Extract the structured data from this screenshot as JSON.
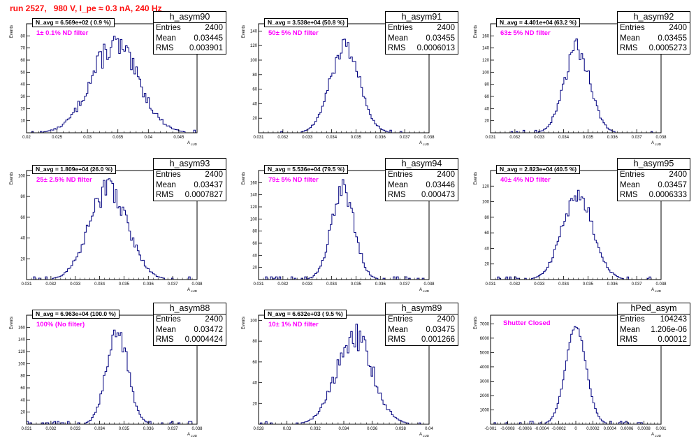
{
  "run_title": "run 2527,   980 V, I_pe ≈ 0.3 nA, 240 Hz",
  "colors": {
    "histogram": "#00007f",
    "title": "#ff1010",
    "filter_label": "#ff00ff",
    "axis": "#000000"
  },
  "stat_labels": {
    "entries": "Entries",
    "mean": "Mean",
    "rms": "RMS"
  },
  "chart_data": [
    {
      "type": "bar",
      "name": "h_asym90",
      "stats": {
        "entries": "2400",
        "mean": "0.03445",
        "rms": "0.003901"
      },
      "n_avg": "N_avg = 6.569e+02 ( 0.9 %)",
      "filter": "1± 0.1% ND filter",
      "ylabel": "Events",
      "xlabel": "A",
      "xlim": [
        0.02,
        0.048
      ],
      "ylim": [
        0,
        90
      ],
      "xticks": [
        "0.02",
        "0.025",
        "0.03",
        "0.035",
        "0.04",
        "0.045"
      ],
      "xtick_values": [
        0.02,
        0.025,
        0.03,
        0.035,
        0.04,
        0.045
      ],
      "yticks": [
        "10",
        "20",
        "30",
        "40",
        "50",
        "60",
        "70",
        "80"
      ],
      "ytick_values": [
        10,
        20,
        30,
        40,
        50,
        60,
        70,
        80
      ],
      "mean": 0.03445,
      "sigma": 0.0039,
      "peak": 72,
      "noise": 0.16
    },
    {
      "type": "bar",
      "name": "h_asym91",
      "stats": {
        "entries": "2400",
        "mean": "0.03455",
        "rms": "0.0006013"
      },
      "n_avg": "N_avg = 3.538e+04 (50.8 %)",
      "filter": "50± 5% ND filter",
      "ylabel": "Events",
      "xlabel": "A",
      "xlim": [
        0.031,
        0.038
      ],
      "ylim": [
        0,
        150
      ],
      "xticks": [
        "0.031",
        "0.032",
        "0.033",
        "0.034",
        "0.035",
        "0.036",
        "0.037",
        "0.038"
      ],
      "xtick_values": [
        0.031,
        0.032,
        0.033,
        0.034,
        0.035,
        0.036,
        0.037,
        0.038
      ],
      "yticks": [
        "20",
        "40",
        "60",
        "80",
        "100",
        "120",
        "140"
      ],
      "ytick_values": [
        20,
        40,
        60,
        80,
        100,
        120,
        140
      ],
      "mean": 0.03455,
      "sigma": 0.0006,
      "peak": 120,
      "noise": 0.12
    },
    {
      "type": "bar",
      "name": "h_asym92",
      "stats": {
        "entries": "2400",
        "mean": "0.03455",
        "rms": "0.0005273"
      },
      "n_avg": "N_avg = 4.401e+04 (63.2 %)",
      "filter": "63± 5% ND filter",
      "ylabel": "Events",
      "xlabel": "A",
      "xlim": [
        0.031,
        0.038
      ],
      "ylim": [
        0,
        180
      ],
      "xticks": [
        "0.031",
        "0.032",
        "0.033",
        "0.034",
        "0.035",
        "0.036",
        "0.037",
        "0.038"
      ],
      "xtick_values": [
        0.031,
        0.032,
        0.033,
        0.034,
        0.035,
        0.036,
        0.037,
        0.038
      ],
      "yticks": [
        "20",
        "40",
        "60",
        "80",
        "100",
        "120",
        "140",
        "160"
      ],
      "ytick_values": [
        20,
        40,
        60,
        80,
        100,
        120,
        140,
        160
      ],
      "mean": 0.03455,
      "sigma": 0.00053,
      "peak": 140,
      "noise": 0.12
    },
    {
      "type": "bar",
      "name": "h_asym93",
      "stats": {
        "entries": "2400",
        "mean": "0.03437",
        "rms": "0.0007827"
      },
      "n_avg": "N_avg = 1.809e+04 (26.0 %)",
      "filter": "25± 2.5% ND filter",
      "ylabel": "Events",
      "xlabel": "A",
      "xlim": [
        0.031,
        0.038
      ],
      "ylim": [
        0,
        105
      ],
      "xticks": [
        "0.031",
        "0.032",
        "0.033",
        "0.034",
        "0.035",
        "0.036",
        "0.037",
        "0.038"
      ],
      "xtick_values": [
        0.031,
        0.032,
        0.033,
        0.034,
        0.035,
        0.036,
        0.037,
        0.038
      ],
      "yticks": [
        "20",
        "40",
        "60",
        "80",
        "100"
      ],
      "ytick_values": [
        20,
        40,
        60,
        80,
        100
      ],
      "mean": 0.03437,
      "sigma": 0.00078,
      "peak": 88,
      "noise": 0.14
    },
    {
      "type": "bar",
      "name": "h_asym94",
      "stats": {
        "entries": "2400",
        "mean": "0.03446",
        "rms": "0.000473"
      },
      "n_avg": "N_avg = 5.536e+04 (79.5 %)",
      "filter": "79± 5% ND filter",
      "ylabel": "Events",
      "xlabel": "A",
      "xlim": [
        0.031,
        0.038
      ],
      "ylim": [
        0,
        180
      ],
      "xticks": [
        "0.031",
        "0.032",
        "0.033",
        "0.034",
        "0.035",
        "0.036",
        "0.037",
        "0.038"
      ],
      "xtick_values": [
        0.031,
        0.032,
        0.033,
        0.034,
        0.035,
        0.036,
        0.037,
        0.038
      ],
      "yticks": [
        "20",
        "40",
        "60",
        "80",
        "100",
        "120",
        "140",
        "160"
      ],
      "ytick_values": [
        20,
        40,
        60,
        80,
        100,
        120,
        140,
        160
      ],
      "mean": 0.03446,
      "sigma": 0.00047,
      "peak": 150,
      "noise": 0.12
    },
    {
      "type": "bar",
      "name": "h_asym95",
      "stats": {
        "entries": "2400",
        "mean": "0.03457",
        "rms": "0.0006333"
      },
      "n_avg": "N_avg = 2.823e+04 (40.5 %)",
      "filter": "40± 4% ND filter",
      "ylabel": "Events",
      "xlabel": "A",
      "xlim": [
        0.031,
        0.038
      ],
      "ylim": [
        0,
        140
      ],
      "xticks": [
        "0.031",
        "0.032",
        "0.033",
        "0.034",
        "0.035",
        "0.036",
        "0.037",
        "0.038"
      ],
      "xtick_values": [
        0.031,
        0.032,
        0.033,
        0.034,
        0.035,
        0.036,
        0.037,
        0.038
      ],
      "yticks": [
        "20",
        "40",
        "60",
        "80",
        "100",
        "120"
      ],
      "ytick_values": [
        20,
        40,
        60,
        80,
        100,
        120
      ],
      "mean": 0.03457,
      "sigma": 0.00063,
      "peak": 110,
      "noise": 0.12
    },
    {
      "type": "bar",
      "name": "h_asym88",
      "stats": {
        "entries": "2400",
        "mean": "0.03472",
        "rms": "0.0004424"
      },
      "n_avg": "N_avg = 6.963e+04 (100.0 %)",
      "filter": "100% (No filter)",
      "ylabel": "Events",
      "xlabel": "A",
      "xlim": [
        0.031,
        0.038
      ],
      "ylim": [
        0,
        180
      ],
      "xticks": [
        "0.031",
        "0.032",
        "0.033",
        "0.034",
        "0.035",
        "0.036",
        "0.037",
        "0.038"
      ],
      "xtick_values": [
        0.031,
        0.032,
        0.033,
        0.034,
        0.035,
        0.036,
        0.037,
        0.038
      ],
      "yticks": [
        "20",
        "40",
        "60",
        "80",
        "100",
        "120",
        "140",
        "160"
      ],
      "ytick_values": [
        20,
        40,
        60,
        80,
        100,
        120,
        140,
        160
      ],
      "mean": 0.03472,
      "sigma": 0.00044,
      "peak": 155,
      "noise": 0.12
    },
    {
      "type": "bar",
      "name": "h_asym89",
      "stats": {
        "entries": "2400",
        "mean": "0.03475",
        "rms": "0.001266"
      },
      "n_avg": "N_avg = 6.632e+03 ( 9.5 %)",
      "filter": "10± 1% ND filter",
      "ylabel": "Events",
      "xlabel": "A",
      "xlim": [
        0.028,
        0.04
      ],
      "ylim": [
        0,
        105
      ],
      "xticks": [
        "0.028",
        "0.03",
        "0.032",
        "0.034",
        "0.036",
        "0.038",
        "0.04"
      ],
      "xtick_values": [
        0.028,
        0.03,
        0.032,
        0.034,
        0.036,
        0.038,
        0.04
      ],
      "yticks": [
        "20",
        "40",
        "60",
        "80",
        "100"
      ],
      "ytick_values": [
        20,
        40,
        60,
        80,
        100
      ],
      "mean": 0.03475,
      "sigma": 0.00127,
      "peak": 85,
      "noise": 0.15
    },
    {
      "type": "bar",
      "name": "hPed_asym",
      "stats": {
        "entries": "104243",
        "mean": "1.206e-06",
        "rms": "0.00012"
      },
      "n_avg": "",
      "filter": "Shutter Closed",
      "ylabel": "Events",
      "xlabel": "A",
      "xlim": [
        -0.001,
        0.001
      ],
      "ylim": [
        0,
        7600
      ],
      "xticks": [
        "-0.001",
        "-0.0008",
        "-0.0006",
        "-0.0004",
        "-0.0002",
        "0",
        "0.0002",
        "0.0004",
        "0.0006",
        "0.0008",
        "0.001"
      ],
      "xtick_values": [
        -0.001,
        -0.0008,
        -0.0006,
        -0.0004,
        -0.0002,
        0,
        0.0002,
        0.0004,
        0.0006,
        0.0008,
        0.001
      ],
      "yticks": [
        "1000",
        "2000",
        "3000",
        "4000",
        "5000",
        "6000",
        "7000"
      ],
      "ytick_values": [
        1000,
        2000,
        3000,
        4000,
        5000,
        6000,
        7000
      ],
      "mean": 0.0,
      "sigma": 0.00012,
      "peak": 6800,
      "noise": 0.02
    }
  ]
}
